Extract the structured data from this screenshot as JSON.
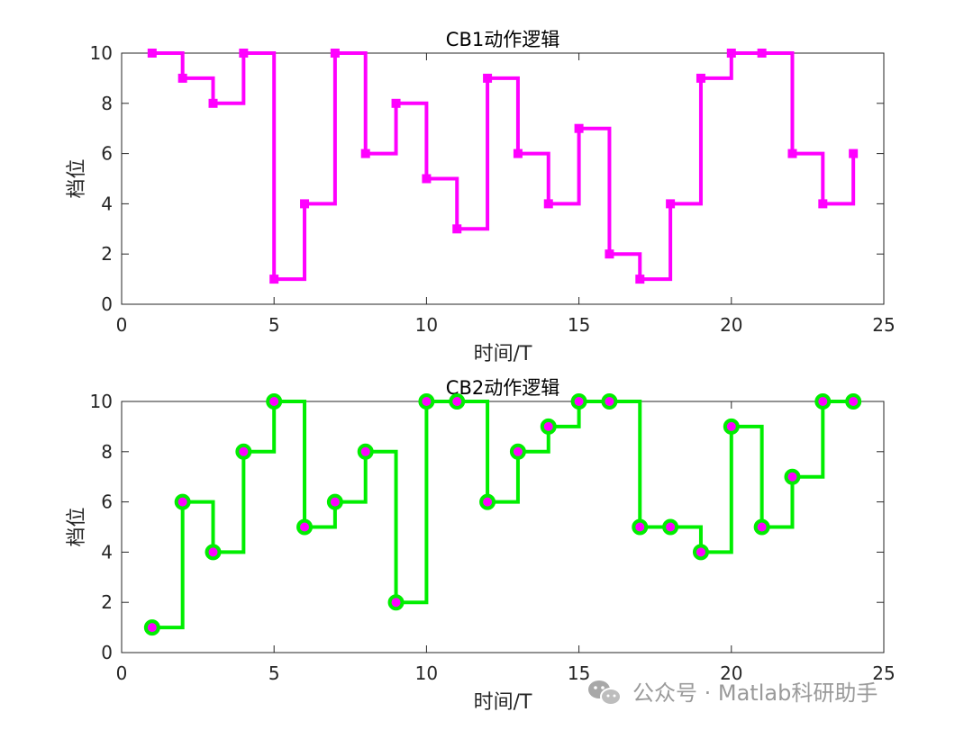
{
  "chart_data": [
    {
      "type": "line",
      "title": "CB1动作逻辑",
      "xlabel": "时间/T",
      "ylabel": "档位",
      "xlim": [
        0,
        25
      ],
      "ylim": [
        0,
        10
      ],
      "xticks": [
        0,
        5,
        10,
        15,
        20,
        25
      ],
      "yticks": [
        0,
        2,
        4,
        6,
        8,
        10
      ],
      "step": "post",
      "line_color": "#ff00ff",
      "marker": "square",
      "marker_edge_color": "#ff00ff",
      "marker_face_color": "#ff00ff",
      "x": [
        1,
        2,
        3,
        4,
        5,
        6,
        7,
        8,
        9,
        10,
        11,
        12,
        13,
        14,
        15,
        16,
        17,
        18,
        19,
        20,
        21,
        22,
        23,
        24
      ],
      "series": [
        {
          "values": [
            10,
            9,
            8,
            10,
            1,
            4,
            10,
            6,
            8,
            5,
            3,
            9,
            6,
            4,
            7,
            2,
            1,
            4,
            9,
            10,
            10,
            6,
            4,
            6
          ]
        }
      ]
    },
    {
      "type": "line",
      "title": "CB2动作逻辑",
      "xlabel": "时间/T",
      "ylabel": "档位",
      "xlim": [
        0,
        25
      ],
      "ylim": [
        0,
        10
      ],
      "xticks": [
        0,
        5,
        10,
        15,
        20,
        25
      ],
      "yticks": [
        0,
        2,
        4,
        6,
        8,
        10
      ],
      "step": "post",
      "line_color": "#00ee00",
      "marker": "circle",
      "marker_edge_color": "#00ee00",
      "marker_face_color": "#ff00ff",
      "x": [
        1,
        2,
        3,
        4,
        5,
        6,
        7,
        8,
        9,
        10,
        11,
        12,
        13,
        14,
        15,
        16,
        17,
        18,
        19,
        20,
        21,
        22,
        23,
        24
      ],
      "series": [
        {
          "values": [
            1,
            6,
            4,
            8,
            10,
            5,
            6,
            8,
            2,
            10,
            10,
            6,
            8,
            9,
            10,
            10,
            5,
            5,
            4,
            9,
            5,
            7,
            10,
            10
          ]
        }
      ]
    }
  ],
  "watermark": {
    "text": "公众号 · Matlab科研助手",
    "icon": "wechat-icon"
  }
}
